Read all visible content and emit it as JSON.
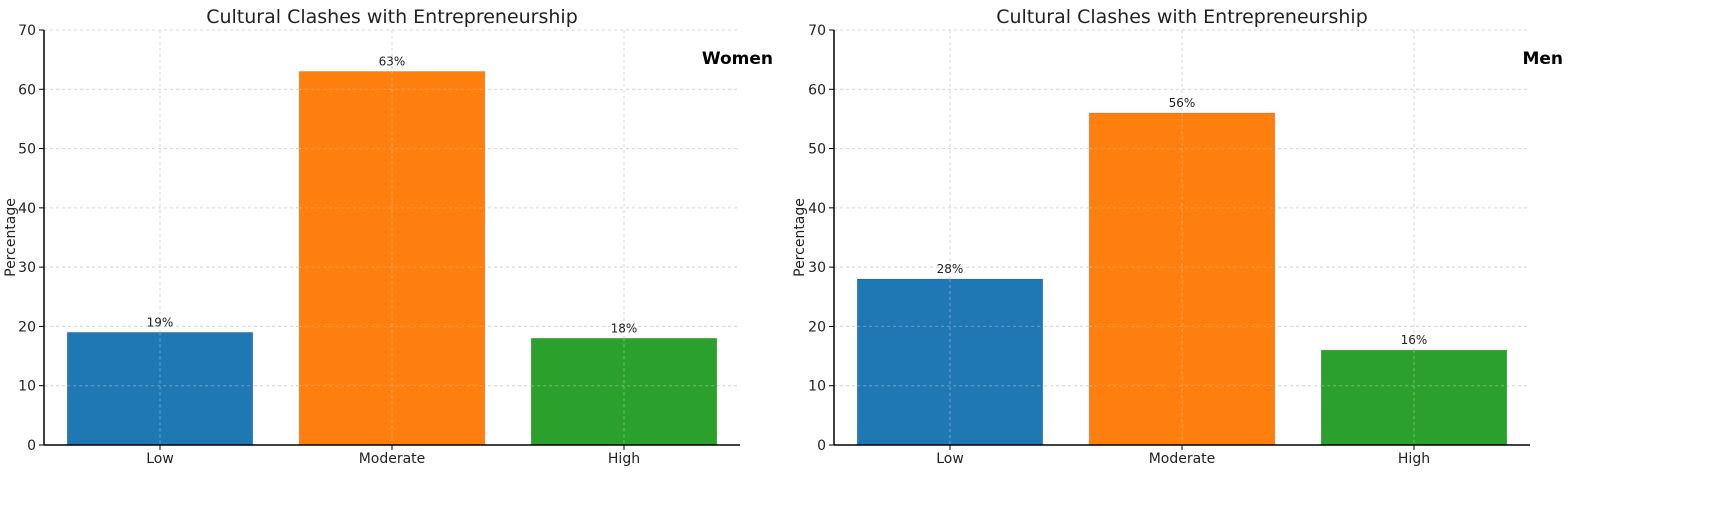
{
  "chart_data": [
    {
      "type": "bar",
      "title": "Cultural Clashes with Entrepreneurship",
      "annotation": "Women",
      "xlabel": "",
      "ylabel": "Percentage",
      "categories": [
        "Low",
        "Moderate",
        "High"
      ],
      "values": [
        19,
        63,
        18
      ],
      "value_labels": [
        "19%",
        "63%",
        "18%"
      ],
      "colors": [
        "#1f77b4",
        "#ff7f0e",
        "#2ca02c"
      ],
      "ylim": [
        0,
        70
      ],
      "yticks": [
        "0",
        "10",
        "20",
        "30",
        "40",
        "50",
        "60",
        "70"
      ],
      "grid": true
    },
    {
      "type": "bar",
      "title": "Cultural Clashes with Entrepreneurship",
      "annotation": "Men",
      "xlabel": "",
      "ylabel": "Percentage",
      "categories": [
        "Low",
        "Moderate",
        "High"
      ],
      "values": [
        28,
        56,
        16
      ],
      "value_labels": [
        "28%",
        "56%",
        "16%"
      ],
      "colors": [
        "#1f77b4",
        "#ff7f0e",
        "#2ca02c"
      ],
      "ylim": [
        0,
        70
      ],
      "yticks": [
        "0",
        "10",
        "20",
        "30",
        "40",
        "50",
        "60",
        "70"
      ],
      "grid": true
    }
  ]
}
